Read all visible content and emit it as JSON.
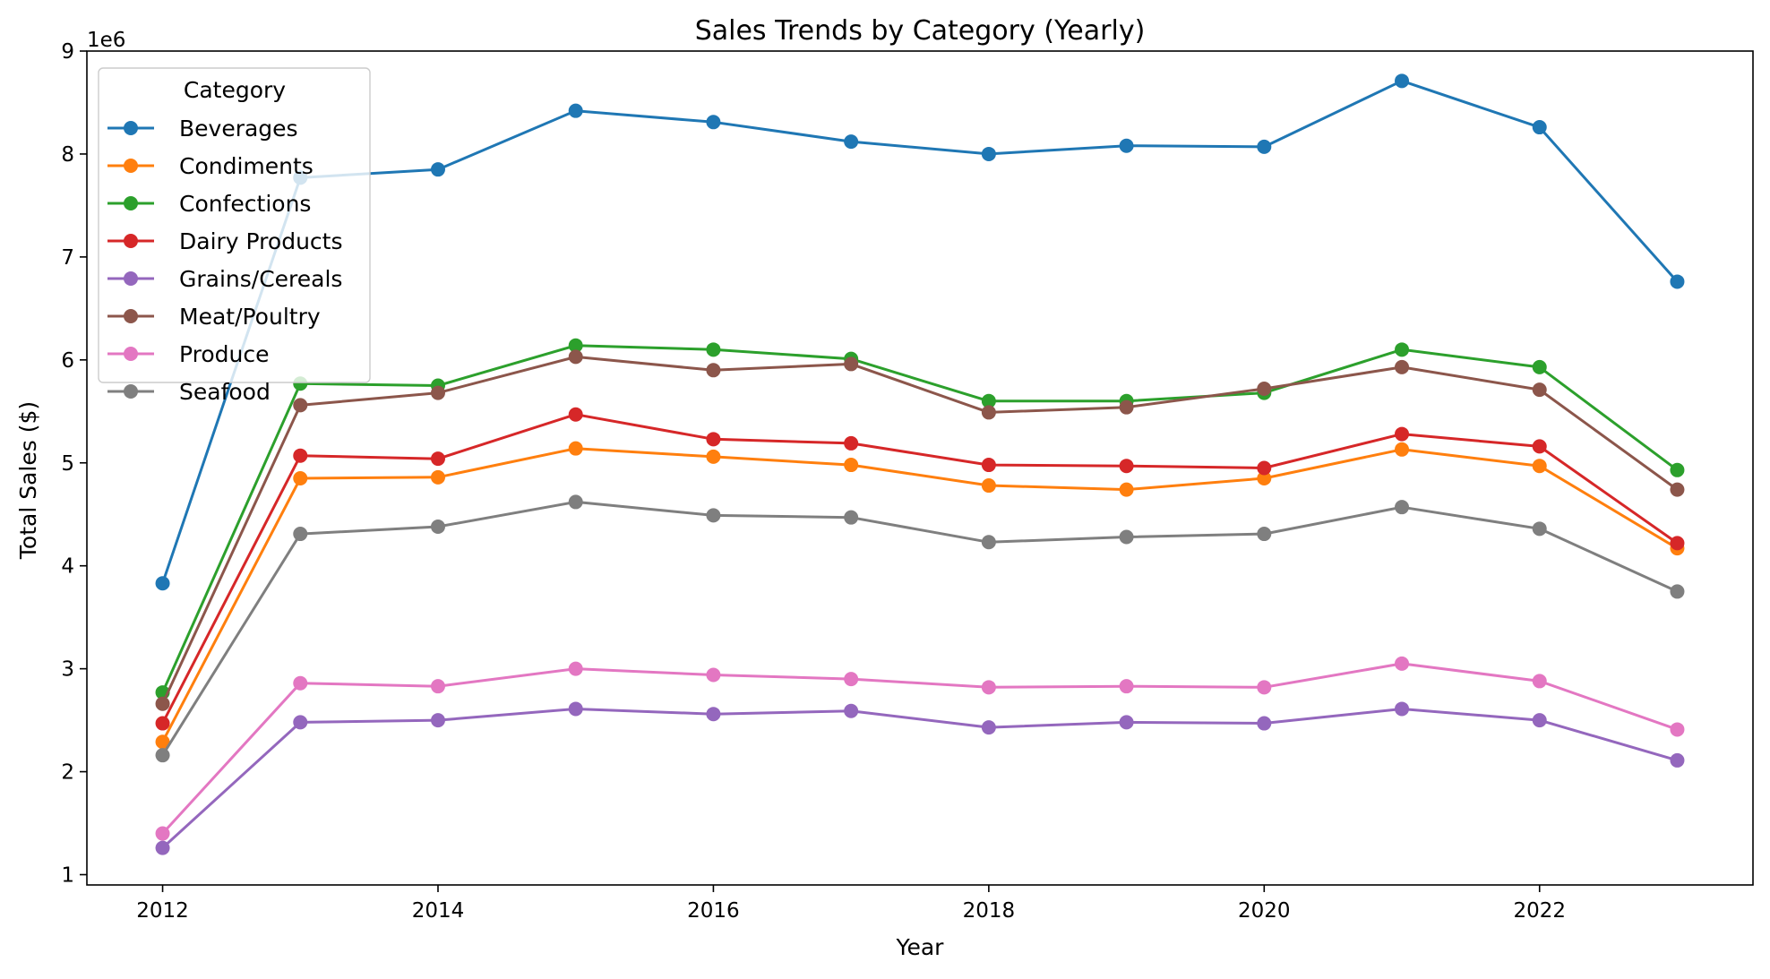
{
  "chart_data": {
    "type": "line",
    "title": "Sales Trends by Category (Yearly)",
    "xlabel": "Year",
    "ylabel": "Total Sales ($)",
    "y_offset_text": "1e6",
    "xlim": [
      2011.45,
      2023.55
    ],
    "ylim": [
      0.9,
      9.0
    ],
    "x_ticks": [
      2012,
      2014,
      2016,
      2018,
      2020,
      2022
    ],
    "x_tick_labels": [
      "2012",
      "2014",
      "2016",
      "2018",
      "2020",
      "2022"
    ],
    "y_ticks": [
      1,
      2,
      3,
      4,
      5,
      6,
      7,
      8,
      9
    ],
    "y_tick_labels": [
      "1",
      "2",
      "3",
      "4",
      "5",
      "6",
      "7",
      "8",
      "9"
    ],
    "grid": false,
    "legend_title": "Category",
    "legend_position": "top-left",
    "x": [
      2012,
      2013,
      2014,
      2015,
      2016,
      2017,
      2018,
      2019,
      2020,
      2021,
      2022,
      2023
    ],
    "series": [
      {
        "name": "Beverages",
        "color": "#1f77b4",
        "values": [
          3.83,
          7.77,
          7.85,
          8.42,
          8.31,
          8.12,
          8.0,
          8.08,
          8.07,
          8.71,
          8.26,
          6.76
        ]
      },
      {
        "name": "Condiments",
        "color": "#ff7f0e",
        "values": [
          2.29,
          4.85,
          4.86,
          5.14,
          5.06,
          4.98,
          4.78,
          4.74,
          4.85,
          5.13,
          4.97,
          4.17
        ]
      },
      {
        "name": "Confections",
        "color": "#2ca02c",
        "values": [
          2.77,
          5.77,
          5.75,
          6.14,
          6.1,
          6.01,
          5.6,
          5.6,
          5.68,
          6.1,
          5.93,
          4.93
        ]
      },
      {
        "name": "Dairy Products",
        "color": "#d62728",
        "values": [
          2.47,
          5.07,
          5.04,
          5.47,
          5.23,
          5.19,
          4.98,
          4.97,
          4.95,
          5.28,
          5.16,
          4.22
        ]
      },
      {
        "name": "Grains/Cereals",
        "color": "#9467bd",
        "values": [
          1.26,
          2.48,
          2.5,
          2.61,
          2.56,
          2.59,
          2.43,
          2.48,
          2.47,
          2.61,
          2.5,
          2.11
        ]
      },
      {
        "name": "Meat/Poultry",
        "color": "#8c564b",
        "values": [
          2.66,
          5.56,
          5.68,
          6.03,
          5.9,
          5.96,
          5.49,
          5.54,
          5.72,
          5.93,
          5.71,
          4.74
        ]
      },
      {
        "name": "Produce",
        "color": "#e377c2",
        "values": [
          1.4,
          2.86,
          2.83,
          3.0,
          2.94,
          2.9,
          2.82,
          2.83,
          2.82,
          3.05,
          2.88,
          2.41
        ]
      },
      {
        "name": "Seafood",
        "color": "#7f7f7f",
        "values": [
          2.16,
          4.31,
          4.38,
          4.62,
          4.49,
          4.47,
          4.23,
          4.28,
          4.31,
          4.57,
          4.36,
          3.75
        ]
      }
    ]
  }
}
